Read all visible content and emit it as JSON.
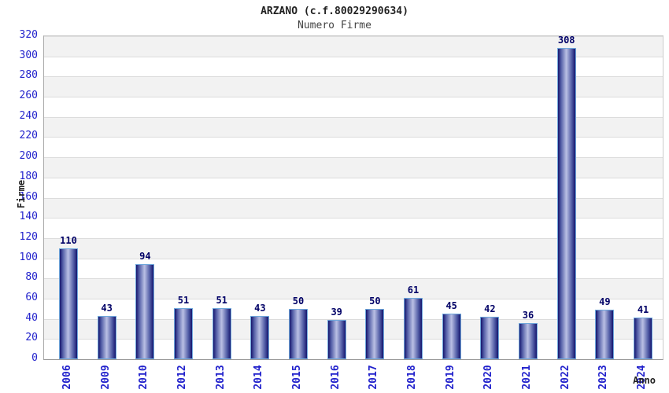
{
  "chart_data": {
    "type": "bar",
    "title": "ARZANO (c.f.80029290634)",
    "subtitle": "Numero Firme",
    "xlabel": "Anno",
    "ylabel": "Firme",
    "categories": [
      "2006",
      "2009",
      "2010",
      "2012",
      "2013",
      "2014",
      "2015",
      "2016",
      "2017",
      "2018",
      "2019",
      "2020",
      "2021",
      "2022",
      "2023",
      "2024"
    ],
    "values": [
      110,
      43,
      94,
      51,
      51,
      43,
      50,
      39,
      50,
      61,
      45,
      42,
      36,
      308,
      49,
      41
    ],
    "ylim": [
      0,
      320
    ],
    "ytick_step": 20,
    "grid": "horizontal-bands",
    "legend": "none"
  },
  "colors": {
    "tick_label": "#2222cc",
    "value_label": "#000066",
    "bar_edge_dark": "#16166e",
    "bar_mid_light": "#bac0e4",
    "bar_border": "#6fa8dc",
    "band_gray": "#f2f2f2",
    "band_white": "#ffffff",
    "gridline": "#dcdcdc",
    "title_color": "#222222",
    "subtitle_color": "#444444"
  }
}
